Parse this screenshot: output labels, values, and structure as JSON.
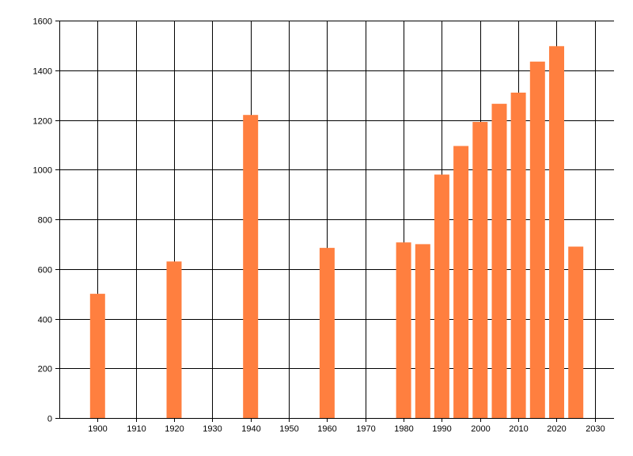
{
  "chart_data": {
    "type": "bar",
    "x": [
      1900,
      1920,
      1940,
      1960,
      1980,
      1985,
      1990,
      1995,
      2000,
      2005,
      2010,
      2015,
      2020,
      2025
    ],
    "values": [
      500,
      630,
      1220,
      685,
      707,
      700,
      980,
      1095,
      1192,
      1265,
      1310,
      1435,
      1497,
      690
    ],
    "xlim": [
      1890,
      2035
    ],
    "ylim": [
      0,
      1600
    ],
    "x_ticks": [
      1900,
      1910,
      1920,
      1930,
      1940,
      1950,
      1960,
      1970,
      1980,
      1990,
      2000,
      2010,
      2020,
      2030
    ],
    "y_ticks": [
      0,
      200,
      400,
      600,
      800,
      1000,
      1200,
      1400,
      1600
    ],
    "title": "",
    "xlabel": "",
    "ylabel": "",
    "grid": true,
    "legend": "none",
    "bar_color": "#ff7f3f",
    "grid_color": "#000000"
  }
}
